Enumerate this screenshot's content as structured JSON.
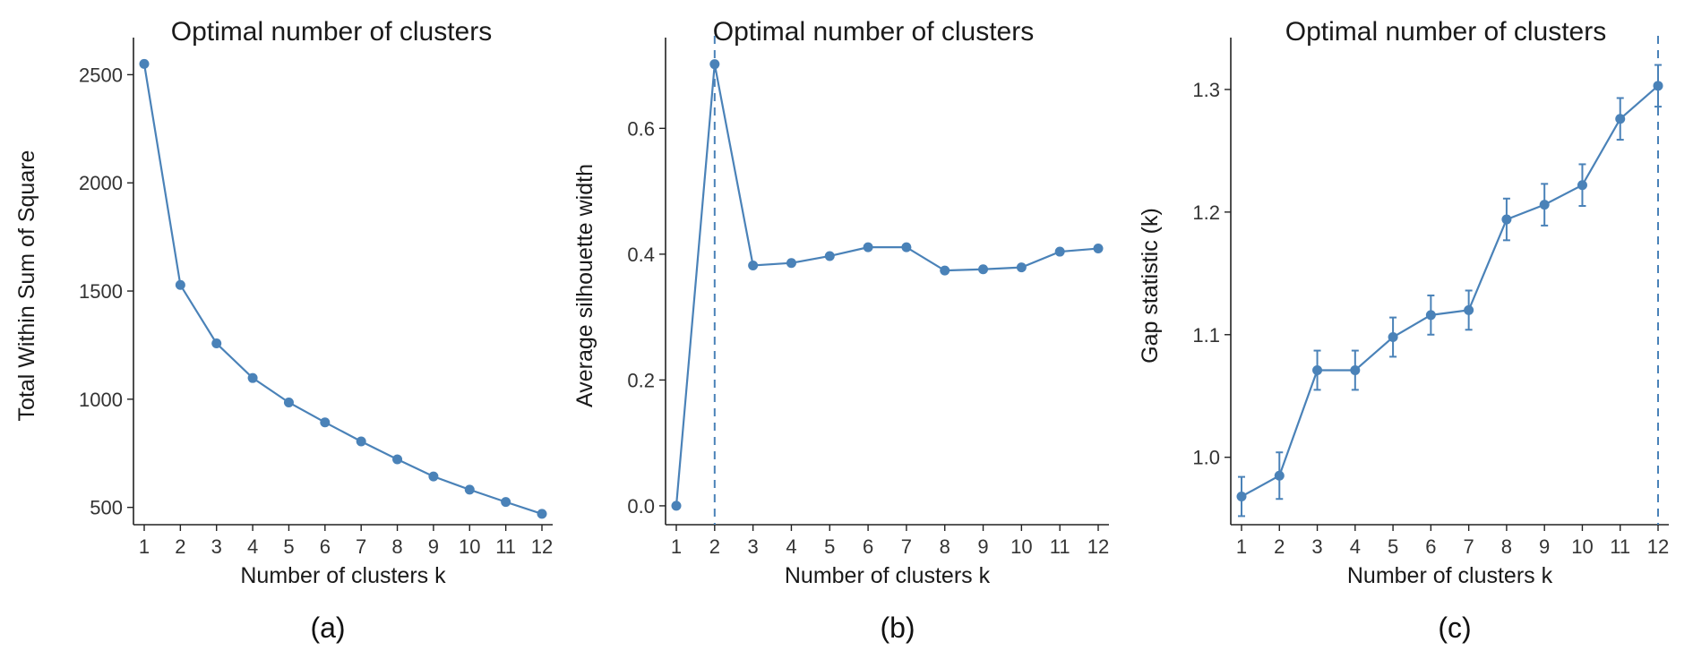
{
  "accent_color": "#4a82b8",
  "chart_data": [
    {
      "type": "line",
      "caption": "(a)",
      "title": "Optimal number of clusters",
      "xlabel": "Number of clusters k",
      "ylabel": "Total Within Sum of Square",
      "categories": [
        "1",
        "2",
        "3",
        "4",
        "5",
        "6",
        "7",
        "8",
        "9",
        "10",
        "11",
        "12"
      ],
      "values": [
        2550,
        1528,
        1258,
        1098,
        985,
        893,
        805,
        722,
        643,
        582,
        525,
        470
      ],
      "ylim": [
        420,
        2630
      ],
      "yticks": [
        500,
        1000,
        1500,
        2000,
        2500
      ],
      "ytick_labels": [
        "500",
        "1000",
        "1500",
        "2000",
        "2500"
      ],
      "vline_at": null
    },
    {
      "type": "line",
      "caption": "(b)",
      "title": "Optimal number of clusters",
      "xlabel": "Number of clusters k",
      "ylabel": "Average silhouette width",
      "categories": [
        "1",
        "2",
        "3",
        "4",
        "5",
        "6",
        "7",
        "8",
        "9",
        "10",
        "11",
        "12"
      ],
      "values": [
        0.0,
        0.702,
        0.382,
        0.386,
        0.397,
        0.411,
        0.411,
        0.374,
        0.376,
        0.379,
        0.404,
        0.409
      ],
      "ylim": [
        -0.03,
        0.73
      ],
      "yticks": [
        0.0,
        0.2,
        0.4,
        0.6
      ],
      "ytick_labels": [
        "0.0",
        "0.2",
        "0.4",
        "0.6"
      ],
      "vline_at": 2
    },
    {
      "type": "line",
      "caption": "(c)",
      "title": "Optimal number of clusters",
      "xlabel": "Number of clusters k",
      "ylabel": "Gap statistic (k)",
      "categories": [
        "1",
        "2",
        "3",
        "4",
        "5",
        "6",
        "7",
        "8",
        "9",
        "10",
        "11",
        "12"
      ],
      "values": [
        0.968,
        0.985,
        1.071,
        1.071,
        1.098,
        1.116,
        1.12,
        1.194,
        1.206,
        1.222,
        1.276,
        1.303
      ],
      "errors": [
        0.016,
        0.019,
        0.016,
        0.016,
        0.016,
        0.016,
        0.016,
        0.017,
        0.017,
        0.017,
        0.017,
        0.017
      ],
      "ylim": [
        0.945,
        1.335
      ],
      "yticks": [
        1.0,
        1.1,
        1.2,
        1.3
      ],
      "ytick_labels": [
        "1.0",
        "1.1",
        "1.2",
        "1.3"
      ],
      "vline_at": 12
    }
  ]
}
